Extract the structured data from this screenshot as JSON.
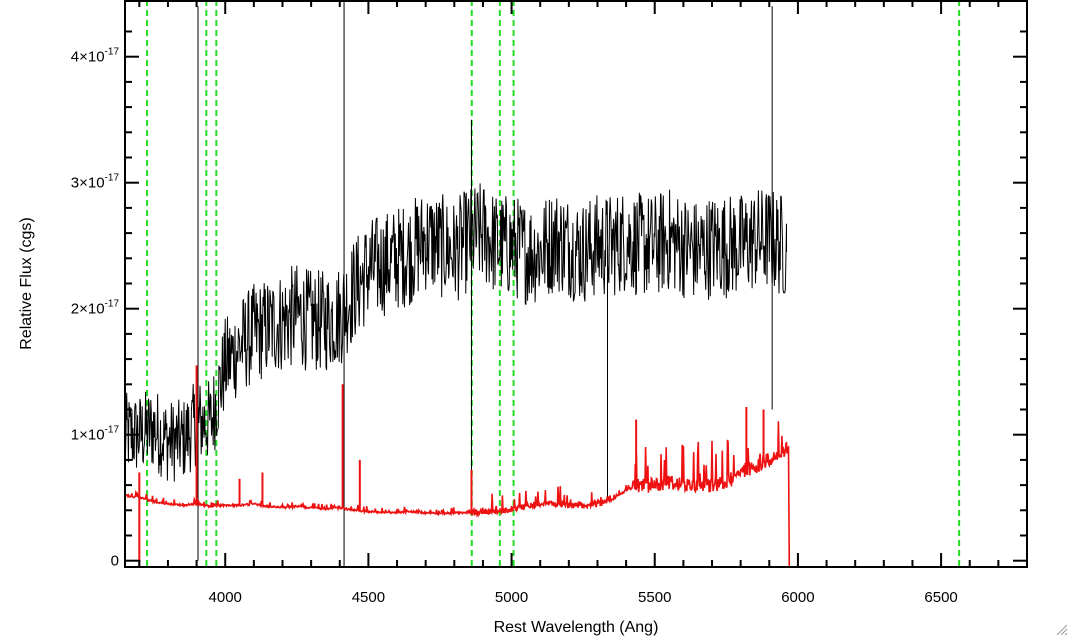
{
  "chart_data": {
    "type": "line",
    "xlabel": "Rest Wavelength (Ang)",
    "ylabel": "Relative Flux (cgs)",
    "xlim": [
      3650,
      6800
    ],
    "ylim": [
      -0.05,
      4.45
    ],
    "y_unit_exponent": -17,
    "x_ticks": [
      4000,
      4500,
      5000,
      5500,
      6000,
      6500
    ],
    "x_tick_labels": [
      "4000",
      "4500",
      "5000",
      "5500",
      "6000",
      "6500"
    ],
    "y_ticks": [
      0,
      1,
      2,
      3,
      4
    ],
    "y_tick_labels": [
      {
        "mantissa": "0",
        "exp": ""
      },
      {
        "mantissa": "1×10",
        "exp": "-17"
      },
      {
        "mantissa": "2×10",
        "exp": "-17"
      },
      {
        "mantissa": "3×10",
        "exp": "-17"
      },
      {
        "mantissa": "4×10",
        "exp": "-17"
      }
    ],
    "grid": false,
    "series": [
      {
        "role": "flux",
        "color": "#000000",
        "x": [
          3650,
          3700,
          3750,
          3800,
          3850,
          3900,
          3950,
          4000,
          4050,
          4100,
          4150,
          4200,
          4250,
          4300,
          4350,
          4400,
          4450,
          4500,
          4550,
          4600,
          4650,
          4700,
          4750,
          4800,
          4850,
          4900,
          4950,
          5000,
          5050,
          5100,
          5150,
          5200,
          5250,
          5300,
          5350,
          5400,
          5450,
          5500,
          5550,
          5600,
          5650,
          5700,
          5750,
          5800,
          5850,
          5900,
          5950,
          5960
        ],
        "y": [
          1.0,
          1.0,
          1.05,
          0.95,
          0.95,
          1.1,
          1.1,
          1.55,
          1.7,
          1.8,
          1.85,
          1.9,
          1.95,
          1.9,
          1.9,
          1.95,
          2.15,
          2.3,
          2.35,
          2.4,
          2.45,
          2.55,
          2.5,
          2.45,
          2.55,
          2.6,
          2.5,
          2.5,
          2.45,
          2.45,
          2.55,
          2.5,
          2.45,
          2.5,
          2.5,
          2.55,
          2.5,
          2.5,
          2.55,
          2.5,
          2.45,
          2.5,
          2.5,
          2.5,
          2.55,
          2.55,
          2.5,
          2.45
        ],
        "spikes": [
          {
            "x": 3905,
            "lo": 0.0,
            "hi": 4.4
          },
          {
            "x": 4415,
            "lo": -0.05,
            "hi": 4.45
          },
          {
            "x": 4860,
            "lo": 0.5,
            "hi": 3.5
          },
          {
            "x": 5335,
            "lo": 0.5,
            "hi": 2.5
          },
          {
            "x": 5910,
            "lo": 1.2,
            "hi": 4.4
          }
        ]
      },
      {
        "role": "error",
        "color": "#ee1111",
        "x": [
          3650,
          3700,
          3750,
          3800,
          3850,
          3900,
          3950,
          4000,
          4050,
          4100,
          4150,
          4200,
          4250,
          4300,
          4350,
          4400,
          4450,
          4500,
          4550,
          4600,
          4650,
          4700,
          4750,
          4800,
          4850,
          4900,
          4950,
          5000,
          5050,
          5100,
          5150,
          5200,
          5250,
          5300,
          5350,
          5400,
          5450,
          5500,
          5550,
          5600,
          5650,
          5700,
          5750,
          5800,
          5850,
          5900,
          5950,
          5965,
          5970,
          6800
        ],
        "y": [
          0.52,
          0.5,
          0.47,
          0.45,
          0.44,
          0.45,
          0.43,
          0.44,
          0.44,
          0.45,
          0.43,
          0.42,
          0.43,
          0.42,
          0.41,
          0.42,
          0.4,
          0.39,
          0.38,
          0.38,
          0.39,
          0.38,
          0.37,
          0.38,
          0.38,
          0.39,
          0.39,
          0.41,
          0.43,
          0.45,
          0.45,
          0.44,
          0.44,
          0.45,
          0.48,
          0.56,
          0.6,
          0.6,
          0.62,
          0.6,
          0.6,
          0.6,
          0.62,
          0.7,
          0.75,
          0.8,
          0.85,
          0.9,
          -0.05,
          -0.05
        ],
        "spikes": [
          {
            "x": 3700,
            "lo": -0.05,
            "hi": 0.7
          },
          {
            "x": 3900,
            "lo": 0.45,
            "hi": 1.55
          },
          {
            "x": 4050,
            "lo": 0.44,
            "hi": 0.65
          },
          {
            "x": 4130,
            "lo": 0.45,
            "hi": 0.7
          },
          {
            "x": 4410,
            "lo": 0.42,
            "hi": 1.4
          },
          {
            "x": 4470,
            "lo": 0.4,
            "hi": 0.8
          },
          {
            "x": 4860,
            "lo": 0.38,
            "hi": 0.72
          },
          {
            "x": 5435,
            "lo": 0.56,
            "hi": 1.12
          },
          {
            "x": 5820,
            "lo": 0.7,
            "hi": 1.22
          },
          {
            "x": 5880,
            "lo": 0.78,
            "hi": 1.2
          }
        ]
      }
    ],
    "reference_lines": {
      "color": "#22dd22",
      "style": "dashed",
      "x": [
        3727,
        3934,
        3969,
        4861,
        4959,
        5007,
        6563
      ]
    }
  }
}
